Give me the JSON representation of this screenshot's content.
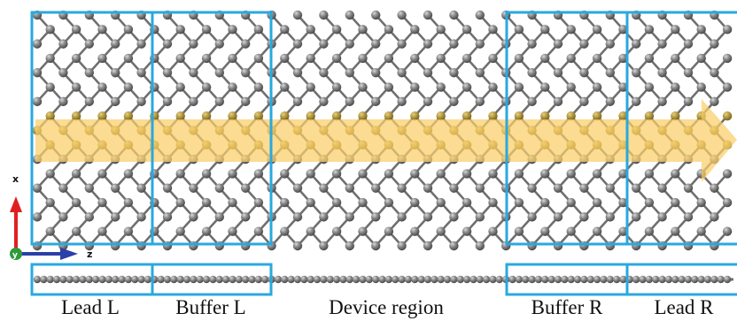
{
  "regions": [
    {
      "label": "Lead L",
      "kind": "lead"
    },
    {
      "label": "Buffer L",
      "kind": "buffer"
    },
    {
      "label": "Device region",
      "kind": "device"
    },
    {
      "label": "Buffer R",
      "kind": "buffer"
    },
    {
      "label": "Lead R",
      "kind": "lead"
    }
  ],
  "axes": {
    "x_label": "x",
    "z_label": "z",
    "y_label": "y"
  },
  "colors": {
    "box": "#29a9df",
    "atom": "#8c8c8c",
    "atom_dark": "#5a5a5a",
    "bond": "#6f6f6f",
    "band": "#f9cf68",
    "band_atom": "#b59a3e",
    "x_axis": "#e02020",
    "z_axis": "#2a3fa8",
    "y_axis": "#2f9a3a"
  },
  "icons": {
    "arrow": "transport-direction-arrow",
    "axes": "coordinate-axes-icon"
  }
}
